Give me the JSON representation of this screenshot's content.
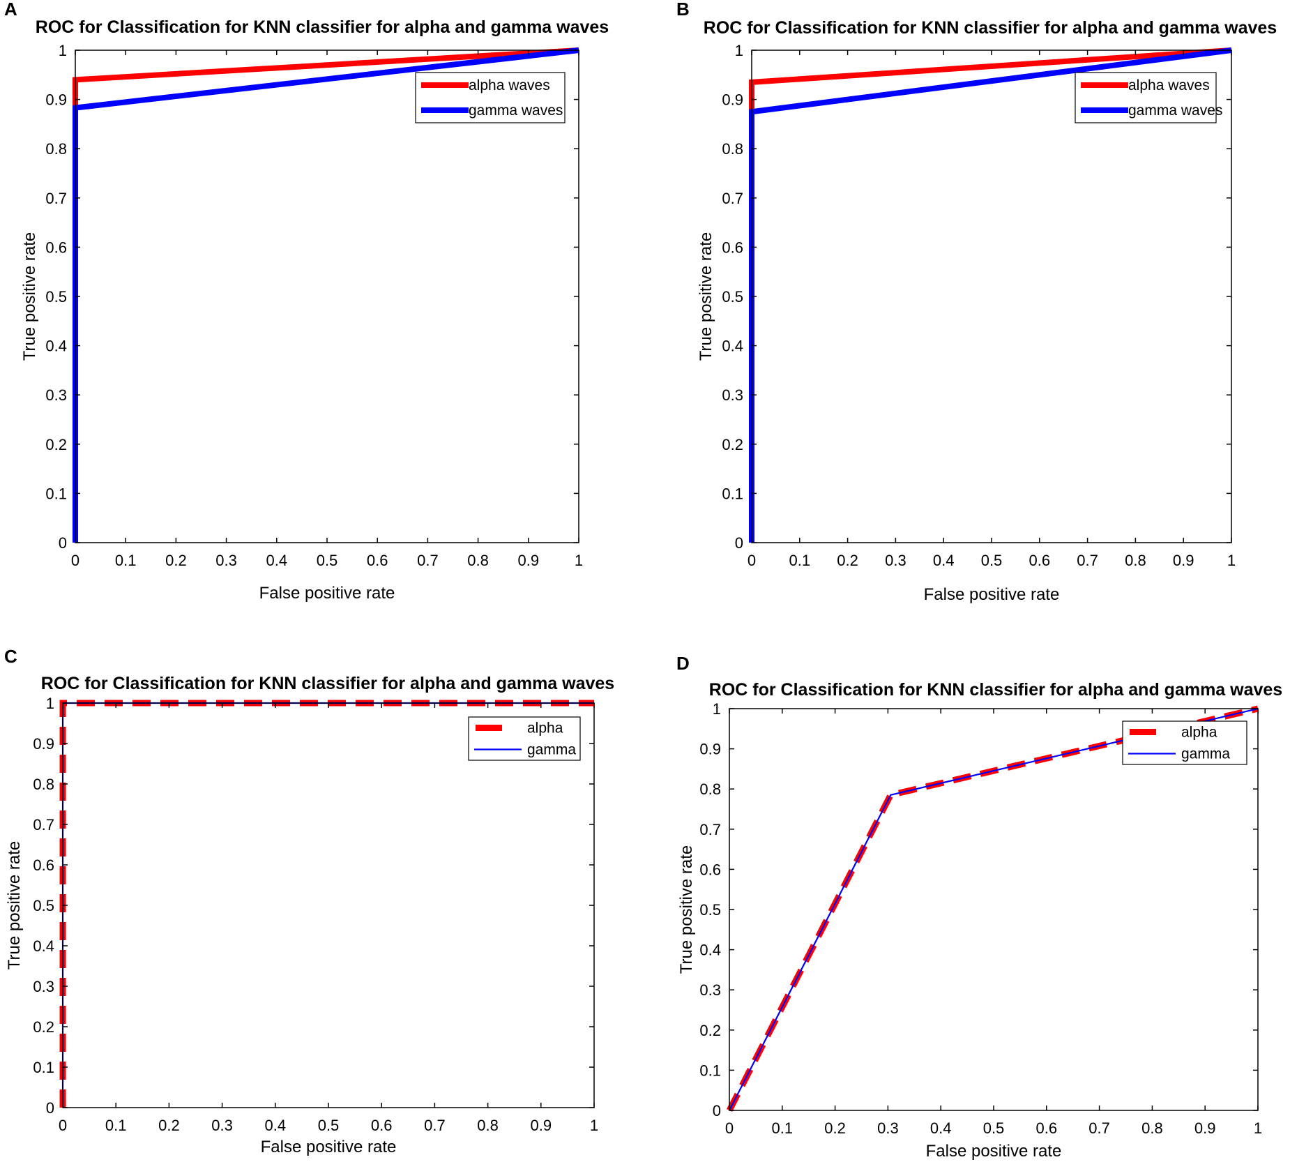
{
  "figure": {
    "background": "#ffffff",
    "axis_color": "#000000"
  },
  "chart_data": [
    {
      "panel": "A",
      "type": "line",
      "title": "ROC for Classification for KNN classifier for alpha and gamma waves",
      "xlabel": "False positive rate",
      "ylabel": "True positive rate",
      "xlim": [
        0,
        1
      ],
      "ylim": [
        0,
        1
      ],
      "x_ticks": [
        "0",
        "0.1",
        "0.2",
        "0.3",
        "0.4",
        "0.5",
        "0.6",
        "0.7",
        "0.8",
        "0.9",
        "1"
      ],
      "y_ticks": [
        "0",
        "0.1",
        "0.2",
        "0.3",
        "0.4",
        "0.5",
        "0.6",
        "0.7",
        "0.8",
        "0.9",
        "1"
      ],
      "grid": false,
      "legend_position": "top-right",
      "series": [
        {
          "name": "alpha waves",
          "color": "#ff0000",
          "style": "solid-thick",
          "x": [
            0,
            0,
            1
          ],
          "y": [
            0,
            0.94,
            1
          ]
        },
        {
          "name": "gamma waves",
          "color": "#0000ff",
          "style": "solid-thick",
          "x": [
            0,
            0,
            1
          ],
          "y": [
            0,
            0.883,
            1
          ]
        }
      ]
    },
    {
      "panel": "B",
      "type": "line",
      "title": "ROC for Classification for KNN classifier for alpha and gamma waves",
      "xlabel": "False positive rate",
      "ylabel": "True positive rate",
      "xlim": [
        0,
        1
      ],
      "ylim": [
        0,
        1
      ],
      "x_ticks": [
        "0",
        "0.1",
        "0.2",
        "0.3",
        "0.4",
        "0.5",
        "0.6",
        "0.7",
        "0.8",
        "0.9",
        "1"
      ],
      "y_ticks": [
        "0",
        "0.1",
        "0.2",
        "0.3",
        "0.4",
        "0.5",
        "0.6",
        "0.7",
        "0.8",
        "0.9",
        "1"
      ],
      "grid": false,
      "legend_position": "top-right",
      "series": [
        {
          "name": "alpha waves",
          "color": "#ff0000",
          "style": "solid-thick",
          "x": [
            0,
            0,
            1
          ],
          "y": [
            0,
            0.935,
            1
          ]
        },
        {
          "name": "gamma waves",
          "color": "#0000ff",
          "style": "solid-thick",
          "x": [
            0,
            0,
            1
          ],
          "y": [
            0,
            0.875,
            1
          ]
        }
      ]
    },
    {
      "panel": "C",
      "type": "line",
      "title": "ROC for Classification for KNN classifier for alpha and gamma waves",
      "xlabel": "False positive rate",
      "ylabel": "True positive rate",
      "xlim": [
        0,
        1
      ],
      "ylim": [
        0,
        1
      ],
      "x_ticks": [
        "0",
        "0.1",
        "0.2",
        "0.3",
        "0.4",
        "0.5",
        "0.6",
        "0.7",
        "0.8",
        "0.9",
        "1"
      ],
      "y_ticks": [
        "0",
        "0.1",
        "0.2",
        "0.3",
        "0.4",
        "0.5",
        "0.6",
        "0.7",
        "0.8",
        "0.9",
        "1"
      ],
      "grid": false,
      "legend_position": "top-right",
      "series": [
        {
          "name": "alpha",
          "color": "#ff0000",
          "style": "dashed-thick",
          "x": [
            0,
            0,
            1
          ],
          "y": [
            0,
            1,
            1
          ]
        },
        {
          "name": "gamma",
          "color": "#0000ff",
          "style": "solid-thin",
          "x": [
            0,
            0,
            1
          ],
          "y": [
            0,
            1,
            1
          ]
        }
      ]
    },
    {
      "panel": "D",
      "type": "line",
      "title": "ROC for Classification for KNN classifier for alpha and gamma waves",
      "xlabel": "False positive rate",
      "ylabel": "True positive rate",
      "xlim": [
        0,
        1
      ],
      "ylim": [
        0,
        1
      ],
      "x_ticks": [
        "0",
        "0.1",
        "0.2",
        "0.3",
        "0.4",
        "0.5",
        "0.6",
        "0.7",
        "0.8",
        "0.9",
        "1"
      ],
      "y_ticks": [
        "0",
        "0.1",
        "0.2",
        "0.3",
        "0.4",
        "0.5",
        "0.6",
        "0.7",
        "0.8",
        "0.9",
        "1"
      ],
      "grid": false,
      "legend_position": "top-right",
      "series": [
        {
          "name": "alpha",
          "color": "#ff0000",
          "style": "dashed-thick",
          "x": [
            0,
            0.305,
            1
          ],
          "y": [
            0,
            0.785,
            1
          ]
        },
        {
          "name": "gamma",
          "color": "#0000ff",
          "style": "solid-thin",
          "x": [
            0,
            0.305,
            1
          ],
          "y": [
            0,
            0.785,
            1
          ]
        }
      ]
    }
  ]
}
